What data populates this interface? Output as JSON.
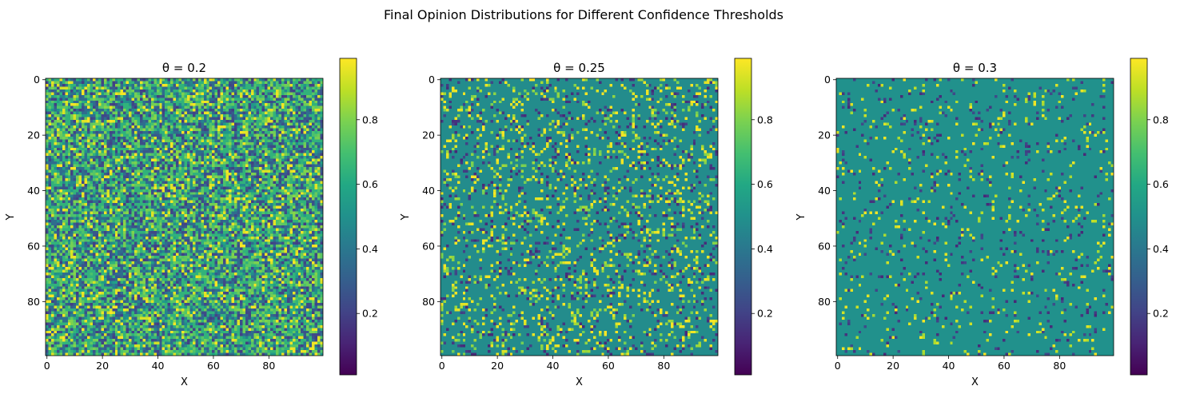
{
  "suptitle": "Final Opinion Distributions for Different Confidence Thresholds",
  "colormap": "viridis",
  "chart_data": [
    {
      "type": "heatmap",
      "title": "θ = 0.2",
      "xlabel": "X",
      "ylabel": "Y",
      "grid_size": 100,
      "xlim": [
        0,
        99
      ],
      "ylim": [
        99,
        0
      ],
      "xticks": [
        "0",
        "20",
        "40",
        "60",
        "80"
      ],
      "yticks": [
        "0",
        "20",
        "40",
        "60",
        "80"
      ],
      "colorbar": {
        "range": [
          0.01,
          0.99
        ],
        "ticks": [
          "0.2",
          "0.4",
          "0.6",
          "0.8"
        ]
      },
      "threshold": 0.2,
      "description_values": "mixed opinions, many small clusters"
    },
    {
      "type": "heatmap",
      "title": "θ = 0.25",
      "xlabel": "X",
      "ylabel": "Y",
      "grid_size": 100,
      "xlim": [
        0,
        99
      ],
      "ylim": [
        99,
        0
      ],
      "xticks": [
        "0",
        "20",
        "40",
        "60",
        "80"
      ],
      "yticks": [
        "0",
        "20",
        "40",
        "60",
        "80"
      ],
      "colorbar": {
        "range": [
          0.01,
          0.99
        ],
        "ticks": [
          "0.2",
          "0.4",
          "0.6",
          "0.8"
        ]
      },
      "threshold": 0.25
    },
    {
      "type": "heatmap",
      "title": "θ = 0.3",
      "xlabel": "X",
      "ylabel": "Y",
      "grid_size": 100,
      "xlim": [
        0,
        99
      ],
      "ylim": [
        99,
        0
      ],
      "xticks": [
        "0",
        "20",
        "40",
        "60",
        "80"
      ],
      "yticks": [
        "0",
        "20",
        "40",
        "60",
        "80"
      ],
      "colorbar": {
        "range": [
          0.01,
          0.99
        ],
        "ticks": [
          "0.2",
          "0.4",
          "0.6",
          "0.8"
        ]
      },
      "threshold": 0.3
    }
  ]
}
